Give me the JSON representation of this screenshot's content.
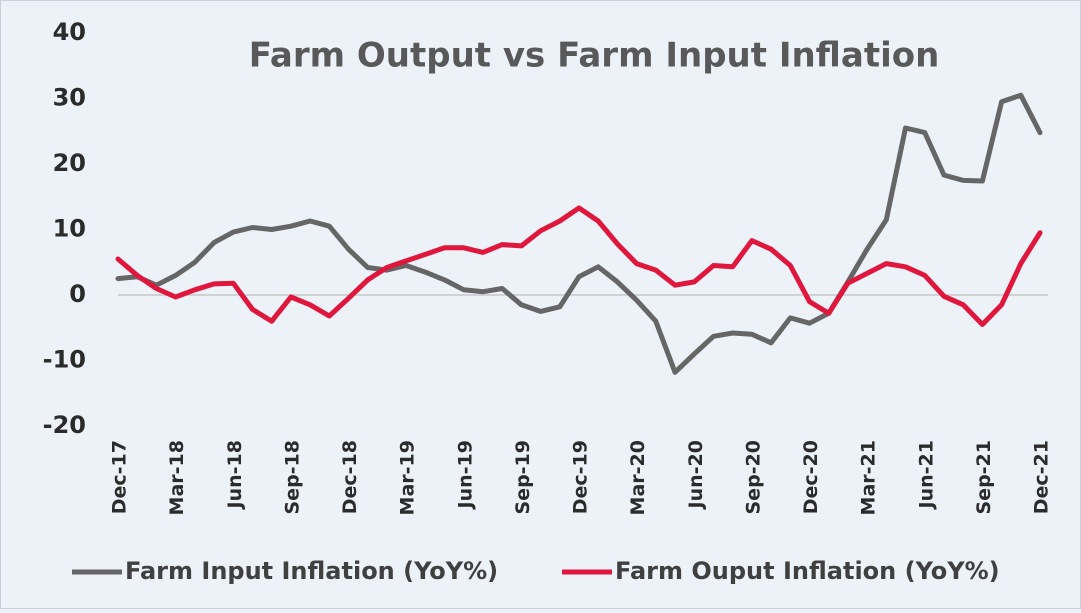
{
  "chart_data": {
    "type": "line",
    "title": "Farm Output vs Farm Input Inflation",
    "categories": [
      "Dec-17",
      null,
      null,
      "Mar-18",
      null,
      null,
      "Jun-18",
      null,
      null,
      "Sep-18",
      null,
      null,
      "Dec-18",
      null,
      null,
      "Mar-19",
      null,
      null,
      "Jun-19",
      null,
      null,
      "Sep-19",
      null,
      null,
      "Dec-19",
      null,
      null,
      "Mar-20",
      null,
      null,
      "Jun-20",
      null,
      null,
      "Sep-20",
      null,
      null,
      "Dec-20",
      null,
      null,
      "Mar-21",
      null,
      null,
      "Jun-21",
      null,
      null,
      "Sep-21",
      null,
      null,
      "Dec-21"
    ],
    "series": [
      {
        "name": "Farm Input Inflation (YoY%)",
        "color": "#666666",
        "values": [
          2.5,
          2.8,
          1.5,
          3.0,
          5.0,
          8.0,
          9.6,
          10.3,
          10.0,
          10.5,
          11.3,
          10.5,
          7.0,
          4.2,
          3.8,
          4.5,
          3.5,
          2.3,
          0.8,
          0.5,
          1.0,
          -1.5,
          -2.5,
          -1.8,
          2.8,
          4.3,
          2.0,
          -0.8,
          -4.0,
          -11.8,
          -9.0,
          -6.3,
          -5.8,
          -6.0,
          -7.3,
          -3.5,
          -4.3,
          -2.8,
          2.0,
          7.0,
          11.5,
          25.5,
          24.8,
          18.3,
          17.5,
          17.4,
          29.5,
          30.5,
          24.8
        ]
      },
      {
        "name": "Farm Ouput Inflation (YoY%)",
        "color": "#e0173d",
        "values": [
          5.5,
          3.0,
          1.0,
          -0.3,
          0.8,
          1.7,
          1.8,
          -2.2,
          -4.0,
          -0.3,
          -1.5,
          -3.2,
          -0.5,
          2.3,
          4.2,
          5.2,
          6.2,
          7.2,
          7.2,
          6.5,
          7.7,
          7.5,
          9.8,
          11.3,
          13.3,
          11.3,
          7.8,
          4.8,
          3.8,
          1.5,
          2.0,
          4.5,
          4.3,
          8.3,
          7.0,
          4.5,
          -1.0,
          -2.8,
          1.8,
          3.3,
          4.8,
          4.3,
          3.0,
          -0.2,
          -1.5,
          -4.5,
          -1.5,
          4.8,
          9.5
        ]
      }
    ],
    "ylim": [
      -20,
      40
    ],
    "yticks": [
      -20,
      -10,
      0,
      10,
      20,
      30,
      40
    ],
    "legend": "bottom"
  }
}
